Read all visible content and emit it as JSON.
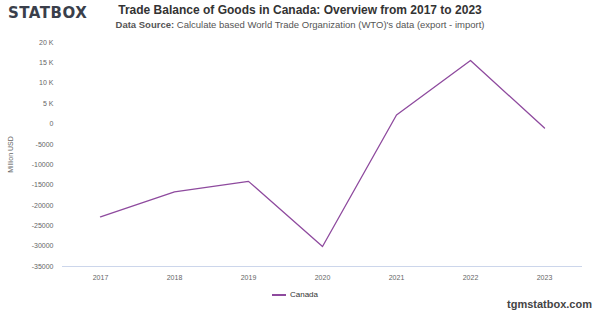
{
  "chart_data": {
    "type": "line",
    "brand": "STATBOX",
    "title": "Trade Balance of Goods in Canada: Overview from 2017 to 2023",
    "subtitle": "Data Source: Calculate based World Trade Organization (WTO)'s data (export - import)",
    "source_url": "tgmstatbox.com",
    "y_label": "Million USD",
    "categories": [
      "2017",
      "2018",
      "2019",
      "2020",
      "2021",
      "2022",
      "2023"
    ],
    "series": [
      {
        "name": "Canada",
        "color": "#8e4a9e",
        "values": [
          -22800,
          -16700,
          -14100,
          -30100,
          2200,
          15600,
          -1000
        ]
      }
    ],
    "ylim": [
      -35000,
      20000
    ],
    "yticks": [
      {
        "value": 20000,
        "label": "20 K"
      },
      {
        "value": 15000,
        "label": "15 K"
      },
      {
        "value": 10000,
        "label": "10 K"
      },
      {
        "value": 5000,
        "label": "5 K"
      },
      0,
      -5000,
      -10000,
      -15000,
      -20000,
      -25000,
      -30000,
      -35000
    ],
    "grid": false,
    "legend": "bottom"
  }
}
